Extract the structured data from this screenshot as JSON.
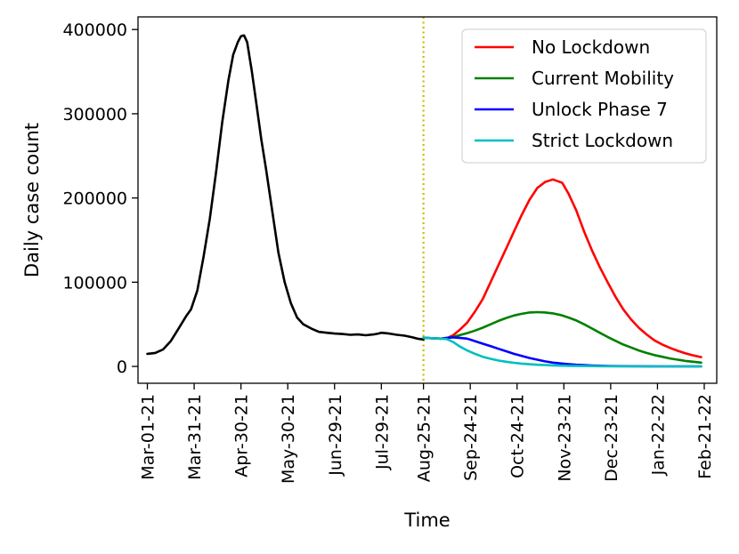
{
  "chart_data": {
    "type": "line",
    "title": "",
    "xlabel": "Time",
    "ylabel": "Daily case count",
    "x_unit": "days since Mar-01-21",
    "xlim": [
      -6,
      365
    ],
    "ylim": [
      -20000,
      415000
    ],
    "x_ticks": [
      {
        "day": 0,
        "label": "Mar-01-21"
      },
      {
        "day": 30,
        "label": "Mar-31-21"
      },
      {
        "day": 60,
        "label": "Apr-30-21"
      },
      {
        "day": 90,
        "label": "May-30-21"
      },
      {
        "day": 120,
        "label": "Jun-29-21"
      },
      {
        "day": 150,
        "label": "Jul-29-21"
      },
      {
        "day": 177,
        "label": "Aug-25-21"
      },
      {
        "day": 207,
        "label": "Sep-24-21"
      },
      {
        "day": 237,
        "label": "Oct-24-21"
      },
      {
        "day": 267,
        "label": "Nov-23-21"
      },
      {
        "day": 297,
        "label": "Dec-23-21"
      },
      {
        "day": 327,
        "label": "Jan-22-22"
      },
      {
        "day": 357,
        "label": "Feb-21-22"
      }
    ],
    "y_ticks": [
      0,
      100000,
      200000,
      300000,
      400000
    ],
    "vline": {
      "day": 177,
      "color": "#bfbf00",
      "style": "dotted"
    },
    "grid": false,
    "legend_position": "top-right",
    "series": [
      {
        "name": "Observed",
        "color": "#000000",
        "in_legend": false,
        "points": [
          [
            0,
            15000
          ],
          [
            5,
            16000
          ],
          [
            10,
            20000
          ],
          [
            15,
            30000
          ],
          [
            20,
            45000
          ],
          [
            25,
            60000
          ],
          [
            28,
            68000
          ],
          [
            32,
            90000
          ],
          [
            36,
            130000
          ],
          [
            40,
            175000
          ],
          [
            44,
            230000
          ],
          [
            48,
            290000
          ],
          [
            52,
            340000
          ],
          [
            55,
            370000
          ],
          [
            58,
            385000
          ],
          [
            60,
            392000
          ],
          [
            62,
            393000
          ],
          [
            64,
            385000
          ],
          [
            67,
            350000
          ],
          [
            70,
            310000
          ],
          [
            73,
            270000
          ],
          [
            76,
            235000
          ],
          [
            80,
            185000
          ],
          [
            84,
            135000
          ],
          [
            88,
            100000
          ],
          [
            92,
            75000
          ],
          [
            96,
            58000
          ],
          [
            100,
            50000
          ],
          [
            105,
            45000
          ],
          [
            110,
            41000
          ],
          [
            115,
            40000
          ],
          [
            120,
            39000
          ],
          [
            125,
            38500
          ],
          [
            130,
            37500
          ],
          [
            135,
            38000
          ],
          [
            140,
            37000
          ],
          [
            145,
            38000
          ],
          [
            148,
            39000
          ],
          [
            150,
            40000
          ],
          [
            155,
            39000
          ],
          [
            160,
            37500
          ],
          [
            165,
            36500
          ],
          [
            170,
            34500
          ],
          [
            173,
            33000
          ],
          [
            175,
            32500
          ],
          [
            177,
            32000
          ]
        ]
      },
      {
        "name": "No Lockdown",
        "color": "#ff0000",
        "in_legend": true,
        "points": [
          [
            177,
            34000
          ],
          [
            182,
            33500
          ],
          [
            188,
            33000
          ],
          [
            192,
            33500
          ],
          [
            196,
            37000
          ],
          [
            200,
            43000
          ],
          [
            205,
            52000
          ],
          [
            210,
            65000
          ],
          [
            215,
            80000
          ],
          [
            220,
            100000
          ],
          [
            225,
            120000
          ],
          [
            230,
            140000
          ],
          [
            235,
            160000
          ],
          [
            240,
            180000
          ],
          [
            245,
            198000
          ],
          [
            250,
            212000
          ],
          [
            255,
            219000
          ],
          [
            260,
            222000
          ],
          [
            263,
            220000
          ],
          [
            266,
            218000
          ],
          [
            270,
            205000
          ],
          [
            275,
            185000
          ],
          [
            280,
            160000
          ],
          [
            285,
            138000
          ],
          [
            290,
            118000
          ],
          [
            295,
            100000
          ],
          [
            300,
            83000
          ],
          [
            305,
            68000
          ],
          [
            310,
            56000
          ],
          [
            315,
            46000
          ],
          [
            320,
            38000
          ],
          [
            325,
            31000
          ],
          [
            330,
            26000
          ],
          [
            335,
            22000
          ],
          [
            340,
            18500
          ],
          [
            345,
            15500
          ],
          [
            350,
            13000
          ],
          [
            355,
            11000
          ]
        ]
      },
      {
        "name": "Current Mobility",
        "color": "#008000",
        "in_legend": true,
        "points": [
          [
            177,
            34000
          ],
          [
            182,
            33500
          ],
          [
            188,
            33000
          ],
          [
            192,
            33500
          ],
          [
            196,
            35000
          ],
          [
            200,
            37000
          ],
          [
            205,
            39500
          ],
          [
            210,
            42500
          ],
          [
            215,
            46000
          ],
          [
            220,
            50000
          ],
          [
            225,
            54000
          ],
          [
            230,
            57500
          ],
          [
            235,
            60500
          ],
          [
            240,
            62500
          ],
          [
            245,
            64000
          ],
          [
            250,
            64500
          ],
          [
            255,
            64000
          ],
          [
            260,
            63000
          ],
          [
            265,
            61000
          ],
          [
            270,
            58000
          ],
          [
            275,
            54500
          ],
          [
            280,
            50000
          ],
          [
            285,
            45000
          ],
          [
            290,
            40000
          ],
          [
            295,
            35000
          ],
          [
            300,
            30500
          ],
          [
            305,
            26000
          ],
          [
            310,
            22500
          ],
          [
            315,
            19000
          ],
          [
            320,
            16000
          ],
          [
            325,
            13500
          ],
          [
            330,
            11500
          ],
          [
            335,
            9500
          ],
          [
            340,
            8000
          ],
          [
            345,
            6500
          ],
          [
            350,
            5500
          ],
          [
            355,
            4500
          ]
        ]
      },
      {
        "name": "Unlock Phase 7",
        "color": "#0000ff",
        "in_legend": true,
        "points": [
          [
            177,
            34000
          ],
          [
            182,
            33500
          ],
          [
            188,
            33000
          ],
          [
            192,
            34000
          ],
          [
            196,
            34500
          ],
          [
            200,
            34000
          ],
          [
            205,
            33000
          ],
          [
            210,
            30000
          ],
          [
            215,
            27000
          ],
          [
            220,
            24000
          ],
          [
            225,
            21000
          ],
          [
            230,
            18000
          ],
          [
            235,
            15000
          ],
          [
            240,
            12500
          ],
          [
            245,
            10000
          ],
          [
            250,
            8000
          ],
          [
            255,
            6000
          ],
          [
            260,
            4500
          ],
          [
            265,
            3500
          ],
          [
            270,
            2700
          ],
          [
            275,
            2000
          ],
          [
            280,
            1500
          ],
          [
            285,
            1100
          ],
          [
            290,
            800
          ],
          [
            295,
            600
          ],
          [
            300,
            400
          ],
          [
            310,
            250
          ],
          [
            320,
            150
          ],
          [
            330,
            100
          ],
          [
            340,
            70
          ],
          [
            355,
            50
          ]
        ]
      },
      {
        "name": "Strict Lockdown",
        "color": "#00bfbf",
        "in_legend": true,
        "points": [
          [
            177,
            34000
          ],
          [
            182,
            33500
          ],
          [
            188,
            33000
          ],
          [
            192,
            32500
          ],
          [
            196,
            29000
          ],
          [
            200,
            24000
          ],
          [
            205,
            19000
          ],
          [
            210,
            15000
          ],
          [
            215,
            11500
          ],
          [
            220,
            9000
          ],
          [
            225,
            7000
          ],
          [
            230,
            5500
          ],
          [
            235,
            4300
          ],
          [
            240,
            3300
          ],
          [
            245,
            2600
          ],
          [
            250,
            2000
          ],
          [
            255,
            1600
          ],
          [
            260,
            1200
          ],
          [
            265,
            900
          ],
          [
            270,
            700
          ],
          [
            280,
            450
          ],
          [
            290,
            300
          ],
          [
            300,
            200
          ],
          [
            320,
            100
          ],
          [
            340,
            60
          ],
          [
            355,
            40
          ]
        ]
      }
    ]
  }
}
